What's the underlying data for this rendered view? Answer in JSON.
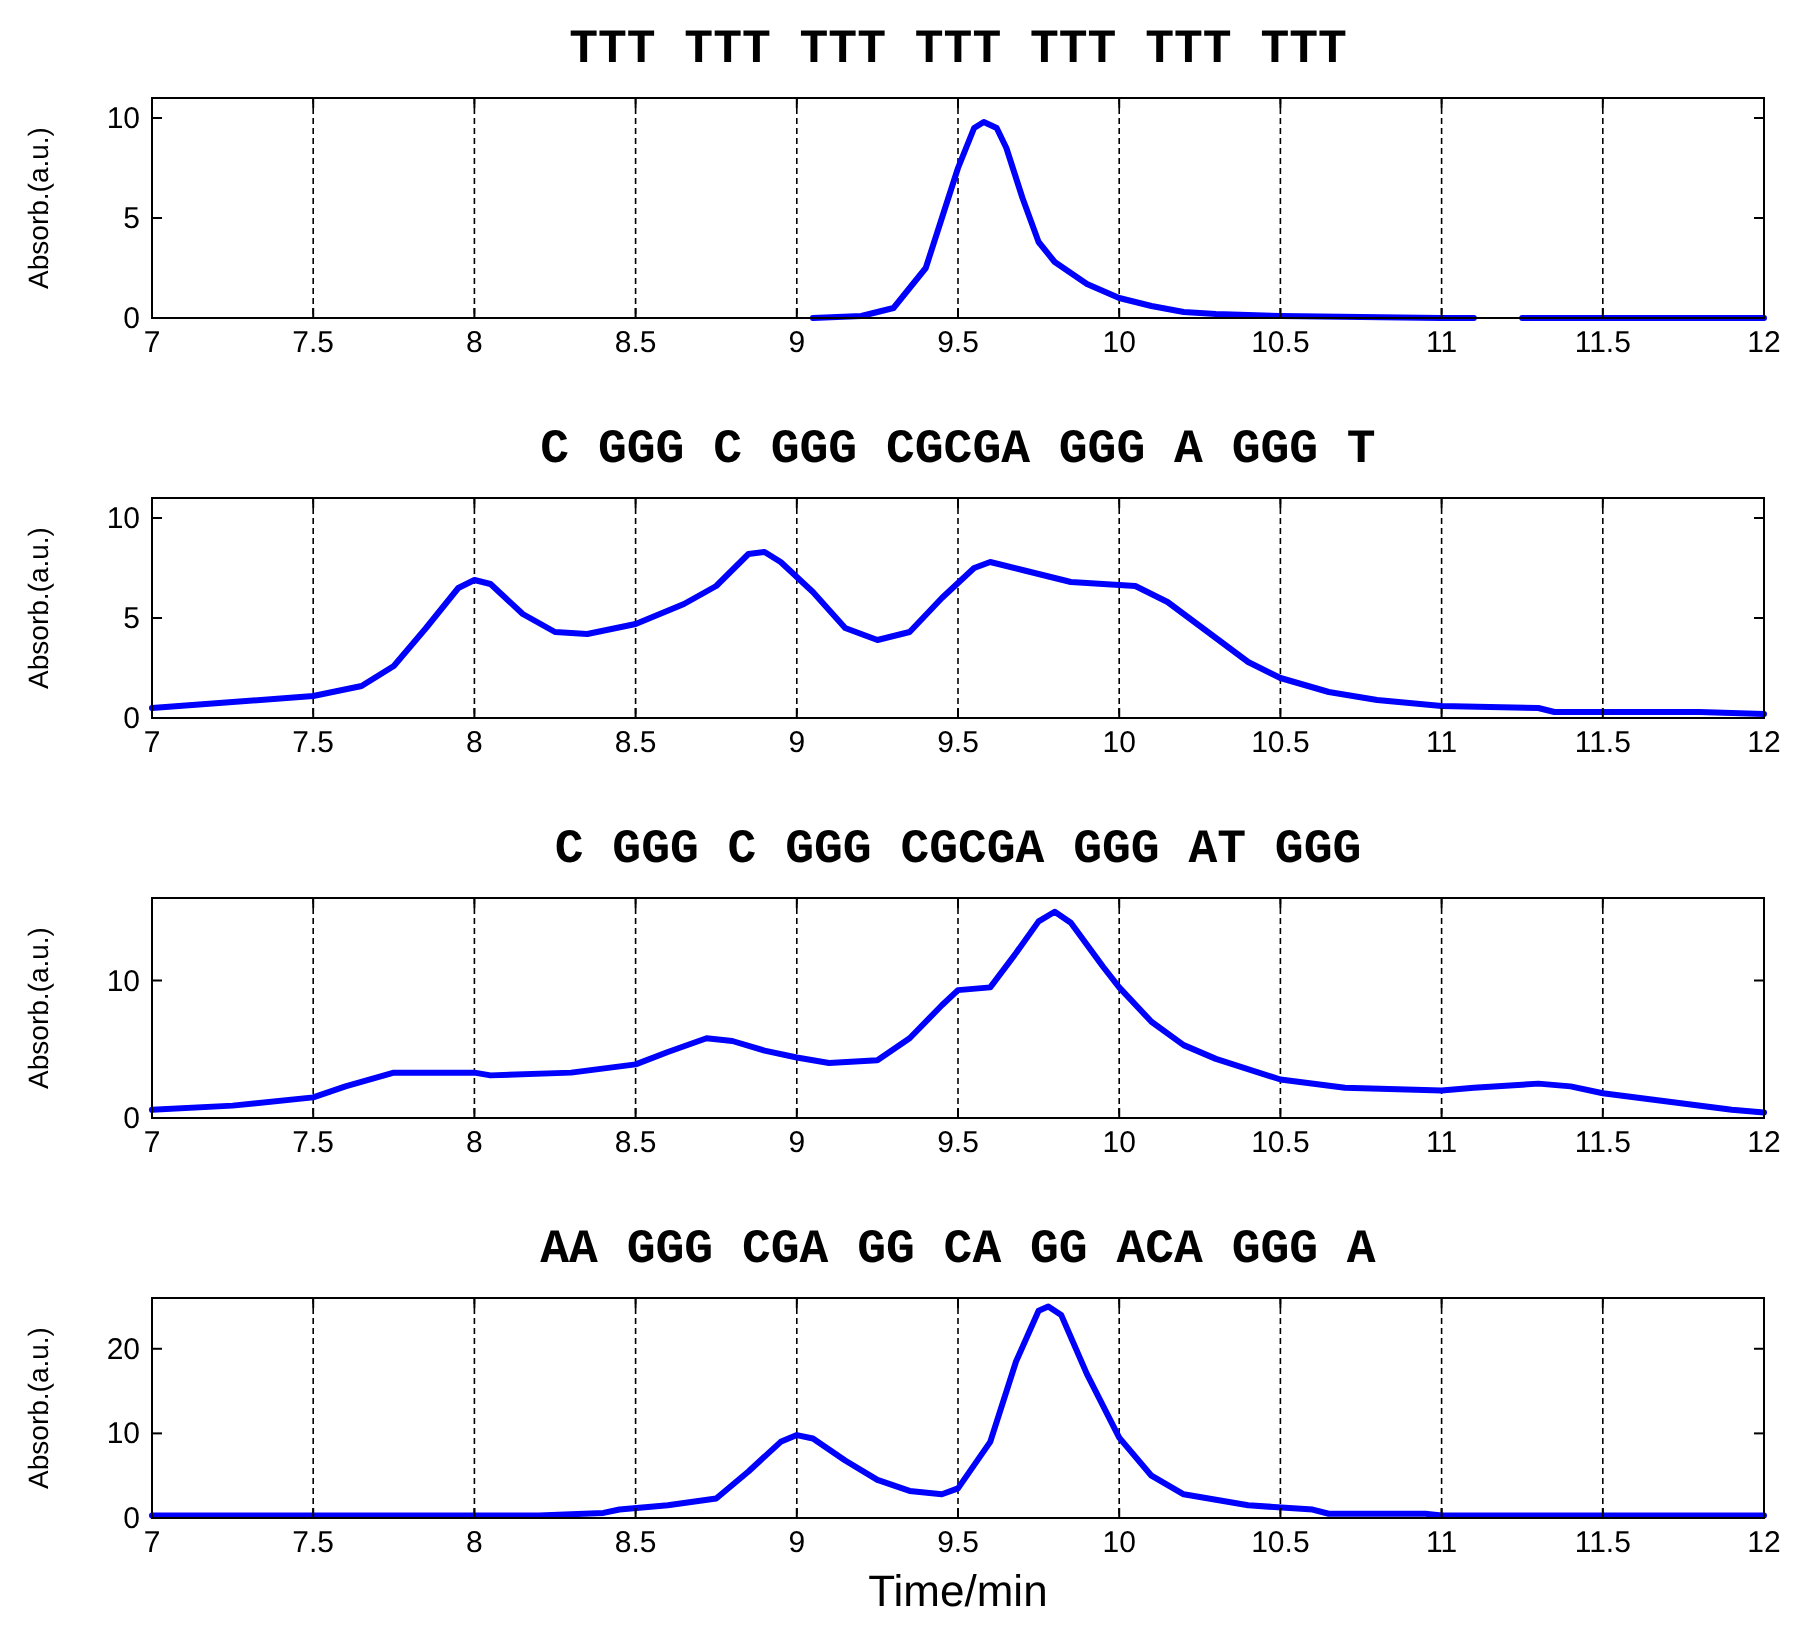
{
  "chart_data": [
    {
      "type": "line",
      "title": "TTT TTT TTT TTT TTT TTT TTT",
      "ylabel": "Absorb.(a.u.)",
      "xlim": [
        7,
        12
      ],
      "xticks": [
        7,
        7.5,
        8,
        8.5,
        9,
        9.5,
        10,
        10.5,
        11,
        11.5,
        12
      ],
      "ylim": [
        0,
        11
      ],
      "yticks": [
        0,
        5,
        10
      ],
      "grid": "x",
      "line_style": "solid",
      "series": [
        {
          "color": "#0000ff",
          "x": [
            9.05,
            9.2,
            9.3,
            9.4,
            9.45,
            9.5,
            9.55,
            9.58,
            9.62,
            9.65,
            9.7,
            9.75,
            9.8,
            9.9,
            10,
            10.1,
            10.2,
            10.3,
            10.5,
            11,
            11.1,
            11.17,
            11.25,
            11.5,
            12
          ],
          "values": [
            0,
            0.1,
            0.5,
            2.5,
            5,
            7.5,
            9.5,
            9.8,
            9.5,
            8.5,
            6,
            3.8,
            2.8,
            1.7,
            1,
            0.6,
            0.3,
            0.2,
            0.1,
            0,
            0,
            null,
            0,
            0,
            0
          ]
        }
      ]
    },
    {
      "type": "line",
      "title": "C GGG C GGG CGCGA GGG A GGG T",
      "ylabel": "Absorb.(a.u.)",
      "xlim": [
        7,
        12
      ],
      "xticks": [
        7,
        7.5,
        8,
        8.5,
        9,
        9.5,
        10,
        10.5,
        11,
        11.5,
        12
      ],
      "ylim": [
        0,
        11
      ],
      "yticks": [
        0,
        5,
        10
      ],
      "grid": "x",
      "line_style": "solid",
      "series": [
        {
          "color": "#0000ff",
          "x": [
            7,
            7.25,
            7.5,
            7.65,
            7.75,
            7.85,
            7.95,
            8,
            8.05,
            8.15,
            8.25,
            8.35,
            8.5,
            8.65,
            8.75,
            8.85,
            8.9,
            8.95,
            9.05,
            9.15,
            9.25,
            9.35,
            9.45,
            9.55,
            9.6,
            9.7,
            9.85,
            10.05,
            10.15,
            10.3,
            10.4,
            10.5,
            10.65,
            10.8,
            11,
            11.3,
            11.35,
            11.8,
            12
          ],
          "values": [
            0.5,
            0.8,
            1.1,
            1.6,
            2.6,
            4.5,
            6.5,
            6.9,
            6.7,
            5.2,
            4.3,
            4.2,
            4.7,
            5.7,
            6.6,
            8.2,
            8.3,
            7.8,
            6.3,
            4.5,
            3.9,
            4.3,
            6,
            7.5,
            7.8,
            7.4,
            6.8,
            6.6,
            5.8,
            4,
            2.8,
            2,
            1.3,
            0.9,
            0.6,
            0.5,
            0.3,
            0.3,
            0.2
          ]
        }
      ]
    },
    {
      "type": "line",
      "title": "C GGG C GGG CGCGA GGG AT GGG",
      "ylabel": "Absorb.(a.u.)",
      "xlim": [
        7,
        12
      ],
      "xticks": [
        7,
        7.5,
        8,
        8.5,
        9,
        9.5,
        10,
        10.5,
        11,
        11.5,
        12
      ],
      "ylim": [
        0,
        16
      ],
      "yticks": [
        0,
        10
      ],
      "grid": "x",
      "line_style": "solid",
      "series": [
        {
          "color": "#0000ff",
          "x": [
            7,
            7.25,
            7.5,
            7.6,
            7.75,
            8,
            8.05,
            8.3,
            8.5,
            8.6,
            8.72,
            8.8,
            8.9,
            9,
            9.1,
            9.25,
            9.35,
            9.45,
            9.5,
            9.6,
            9.68,
            9.75,
            9.8,
            9.85,
            9.95,
            10,
            10.1,
            10.2,
            10.3,
            10.5,
            10.7,
            11,
            11.1,
            11.3,
            11.4,
            11.5,
            11.7,
            11.9,
            12
          ],
          "values": [
            0.6,
            0.9,
            1.5,
            2.3,
            3.3,
            3.3,
            3.1,
            3.3,
            3.9,
            4.8,
            5.8,
            5.6,
            4.9,
            4.4,
            4,
            4.2,
            5.8,
            8.2,
            9.3,
            9.5,
            12,
            14.3,
            15,
            14.2,
            11,
            9.5,
            7,
            5.3,
            4.3,
            2.8,
            2.2,
            2,
            2.2,
            2.5,
            2.3,
            1.8,
            1.2,
            0.6,
            0.4
          ]
        }
      ]
    },
    {
      "type": "line",
      "title": "AA GGG CGA GG CA GG ACA GGG A",
      "xlabel": "Time/min",
      "ylabel": "Absorb.(a.u.)",
      "xlim": [
        7,
        12
      ],
      "xticks": [
        7,
        7.5,
        8,
        8.5,
        9,
        9.5,
        10,
        10.5,
        11,
        11.5,
        12
      ],
      "ylim": [
        0,
        26
      ],
      "yticks": [
        0,
        10,
        20
      ],
      "grid": "x",
      "line_style": "solid",
      "series": [
        {
          "color": "#0000ff",
          "x": [
            7,
            8.2,
            8.4,
            8.45,
            8.6,
            8.75,
            8.85,
            8.95,
            9,
            9.05,
            9.15,
            9.25,
            9.35,
            9.45,
            9.5,
            9.6,
            9.68,
            9.75,
            9.78,
            9.82,
            9.9,
            10,
            10.1,
            10.2,
            10.4,
            10.6,
            10.65,
            10.95,
            11,
            12
          ],
          "values": [
            0.3,
            0.3,
            0.6,
            1,
            1.5,
            2.3,
            5.5,
            9,
            9.8,
            9.4,
            6.8,
            4.5,
            3.2,
            2.8,
            3.5,
            9,
            18.5,
            24.5,
            25,
            24,
            17,
            9.5,
            5,
            2.8,
            1.5,
            1,
            0.5,
            0.5,
            0.3,
            0.3
          ]
        }
      ]
    }
  ]
}
